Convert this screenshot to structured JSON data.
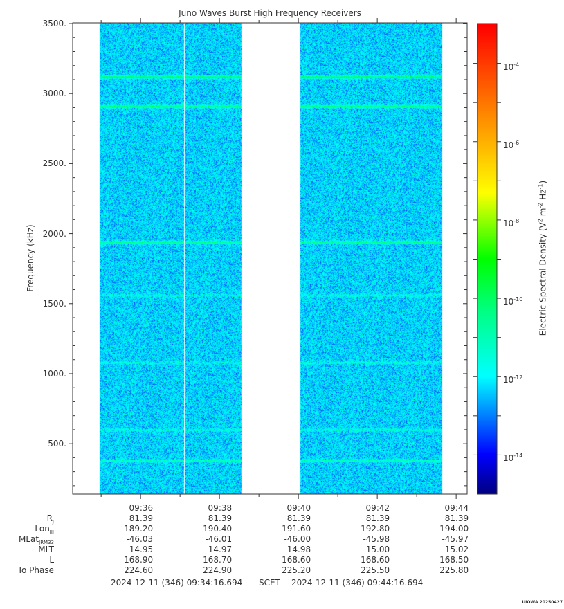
{
  "chart_data": {
    "type": "heatmap",
    "title": "Juno Waves Burst High Frequency Receivers",
    "ylabel": "Frequency (kHz)",
    "ylim": [
      140,
      3505
    ],
    "yticks": [
      {
        "value": 500,
        "label": "500."
      },
      {
        "value": 1000,
        "label": "1000."
      },
      {
        "value": 1500,
        "label": "1500."
      },
      {
        "value": 2000,
        "label": "2000."
      },
      {
        "value": 2500,
        "label": "2500."
      },
      {
        "value": 3000,
        "label": "3000."
      },
      {
        "value": 3500,
        "label": "3500."
      }
    ],
    "x_range_seconds_of_day": [
      34456.694,
      35056.694
    ],
    "xticks": [
      {
        "label": "09:36",
        "seconds": 34560
      },
      {
        "label": "09:38",
        "seconds": 34680
      },
      {
        "label": "09:40",
        "seconds": 34800
      },
      {
        "label": "09:42",
        "seconds": 34920
      },
      {
        "label": "09:44",
        "seconds": 35040
      }
    ],
    "data_intervals_seconds": [
      [
        34497,
        34713
      ],
      [
        34802,
        35018
      ]
    ],
    "gap_line_seconds": 34626,
    "background_log_density": -12,
    "emission_lines": [
      {
        "freq_khz": 3120,
        "log_density": -9.8
      },
      {
        "freq_khz": 2910,
        "log_density": -10.2
      },
      {
        "freq_khz": 1940,
        "log_density": -10.3
      },
      {
        "freq_khz": 1560,
        "log_density": -11.3
      },
      {
        "freq_khz": 1080,
        "log_density": -11.3
      },
      {
        "freq_khz": 600,
        "log_density": -11.2
      },
      {
        "freq_khz": 380,
        "log_density": -10.8
      }
    ],
    "colorbar": {
      "label": "Electric Spectral Density (V",
      "label_parts": [
        "Electric Spectral Density (V",
        "2",
        " m",
        "-2",
        " Hz",
        "-1",
        ")"
      ],
      "log_range": [
        -15,
        -3
      ],
      "ticks": [
        {
          "exp": "-4"
        },
        {
          "exp": "-6"
        },
        {
          "exp": "-8"
        },
        {
          "exp": "-10"
        },
        {
          "exp": "-12"
        },
        {
          "exp": "-14"
        }
      ],
      "base": "10",
      "colors": [
        "#000080",
        "#0000ff",
        "#00ffff",
        "#00ff80",
        "#00ff00",
        "#ffff00",
        "#ffa500",
        "#ff0000"
      ]
    }
  },
  "ephemeris": {
    "rows": [
      {
        "label": "R",
        "sub": "J",
        "values": [
          "81.39",
          "81.39",
          "81.39",
          "81.39",
          "81.39"
        ]
      },
      {
        "label": "Lon",
        "sub": "III",
        "values": [
          "189.20",
          "190.40",
          "191.60",
          "192.80",
          "194.00"
        ]
      },
      {
        "label": "MLat",
        "sub": "JRM33",
        "values": [
          "-46.03",
          "-46.01",
          "-46.00",
          "-45.98",
          "-45.97"
        ]
      },
      {
        "label": "MLT",
        "sub": "",
        "values": [
          "14.95",
          "14.97",
          "14.98",
          "15.00",
          "15.02"
        ]
      },
      {
        "label": "L",
        "sub": "",
        "values": [
          "168.90",
          "168.70",
          "168.60",
          "168.60",
          "168.50"
        ]
      },
      {
        "label": "Io Phase",
        "sub": "",
        "values": [
          "224.60",
          "224.90",
          "225.20",
          "225.50",
          "225.80"
        ]
      }
    ]
  },
  "time_range": {
    "start": "2024-12-11 (346) 09:34:16.694",
    "mid": "SCET",
    "end": "2024-12-11 (346) 09:44:16.694"
  },
  "stamp": "UIOWA 20250427"
}
